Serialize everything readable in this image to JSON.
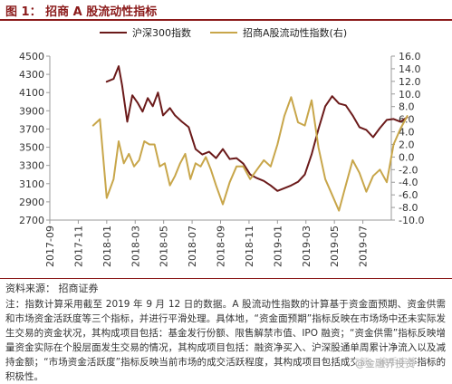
{
  "figure": {
    "title": "图 1： 招商 A 股流动性指标",
    "source": "资料来源： 招商证券",
    "note": "注：指数计算采用截至 2019 年 9 月 12 日的数据。A 股流动性指数的计算基于资金面预期、资金供需和市场资金活跃度等三个指标，并进行平滑处理。具体地，“资金面预期”指标反映在市场场中还未实际发生交易的资金状况，其构成项目包括：基金发行份额、限售解禁市值、IPO 融资；“资金供需”指标反映增量资金实际在个股层面发生交易的情况，其构成项目包括：融资净买入、沪深股通单周累计净流入以及减持金额；“市场资金活跃度”指标反映当前市场的成交活跃程度，其构成项目包括成交额、换手率等指标的积极性。",
    "watermark": "@金融界投资"
  },
  "chart_data": {
    "type": "line",
    "title": "",
    "legend_position": "top-center",
    "x_tick_labels": [
      "2017-09",
      "2017-11",
      "2018-01",
      "2018-03",
      "2018-05",
      "2018-07",
      "2018-09",
      "2018-11",
      "2019-01",
      "2019-03",
      "2019-05",
      "2019-07"
    ],
    "x_range": [
      "2017-09",
      "2019-09"
    ],
    "left_axis": {
      "min": 2700,
      "max": 4500,
      "ticks": [
        2700,
        2900,
        3100,
        3300,
        3500,
        3700,
        3900,
        4100,
        4300,
        4500
      ]
    },
    "right_axis": {
      "min": -10.0,
      "max": 16.0,
      "ticks": [
        -10.0,
        -8.0,
        -6.0,
        -4.0,
        -2.0,
        0.0,
        2.0,
        4.0,
        6.0,
        8.0,
        10.0,
        12.0,
        14.0,
        16.0
      ]
    },
    "series": [
      {
        "name": "沪深300指数",
        "axis": "left",
        "color": "#6b1a1a",
        "x": [
          2018.0,
          2018.04,
          2018.07,
          2018.09,
          2018.12,
          2018.15,
          2018.18,
          2018.21,
          2018.24,
          2018.27,
          2018.3,
          2018.33,
          2018.37,
          2018.4,
          2018.44,
          2018.48,
          2018.52,
          2018.56,
          2018.6,
          2018.64,
          2018.68,
          2018.72,
          2018.76,
          2018.8,
          2018.84,
          2018.88,
          2018.92,
          2018.96,
          2019.0,
          2019.04,
          2019.08,
          2019.12,
          2019.16,
          2019.2,
          2019.24,
          2019.28,
          2019.32,
          2019.36,
          2019.4,
          2019.44,
          2019.48,
          2019.52,
          2019.56,
          2019.6,
          2019.64,
          2019.68,
          2019.72,
          2019.76
        ],
        "values": [
          4220,
          4250,
          4390,
          4180,
          3780,
          4070,
          3990,
          3890,
          4040,
          3950,
          4100,
          3850,
          3930,
          3850,
          3780,
          3720,
          3480,
          3420,
          3450,
          3380,
          3480,
          3370,
          3380,
          3320,
          3200,
          3160,
          3130,
          3080,
          3020,
          3050,
          3080,
          3120,
          3200,
          3420,
          3700,
          3950,
          4060,
          3980,
          3960,
          3850,
          3720,
          3690,
          3610,
          3710,
          3800,
          3810,
          3780,
          3830
        ]
      },
      {
        "name": "招商A股流动性指数(右)",
        "axis": "right",
        "color": "#c8a64a",
        "x": [
          2017.92,
          2017.96,
          2018.0,
          2018.04,
          2018.07,
          2018.1,
          2018.13,
          2018.16,
          2018.19,
          2018.22,
          2018.25,
          2018.28,
          2018.31,
          2018.34,
          2018.37,
          2018.4,
          2018.43,
          2018.46,
          2018.49,
          2018.52,
          2018.55,
          2018.58,
          2018.61,
          2018.64,
          2018.68,
          2018.72,
          2018.76,
          2018.8,
          2018.84,
          2018.88,
          2018.92,
          2018.96,
          2019.0,
          2019.04,
          2019.08,
          2019.12,
          2019.16,
          2019.2,
          2019.24,
          2019.28,
          2019.32,
          2019.36,
          2019.4,
          2019.44,
          2019.48,
          2019.52,
          2019.56,
          2019.6,
          2019.64,
          2019.68,
          2019.72,
          2019.76
        ],
        "values": [
          5.0,
          6.0,
          -6.5,
          -3.5,
          2.5,
          -1.0,
          0.5,
          -1.5,
          -0.5,
          2.5,
          2.0,
          2.0,
          -1.5,
          -1.0,
          -4.5,
          -3.0,
          -1.0,
          0.5,
          -3.5,
          -1.0,
          -1.5,
          0.0,
          -2.0,
          -4.5,
          -7.5,
          -4.0,
          -1.5,
          -1.5,
          -3.5,
          -2.0,
          -0.5,
          -1.5,
          2.0,
          6.5,
          9.5,
          5.5,
          5.0,
          9.0,
          1.5,
          -3.5,
          -6.0,
          -8.5,
          -4.5,
          -0.5,
          -2.5,
          -5.5,
          -3.0,
          -2.0,
          -4.0,
          2.0,
          4.5,
          6.5
        ]
      }
    ]
  }
}
